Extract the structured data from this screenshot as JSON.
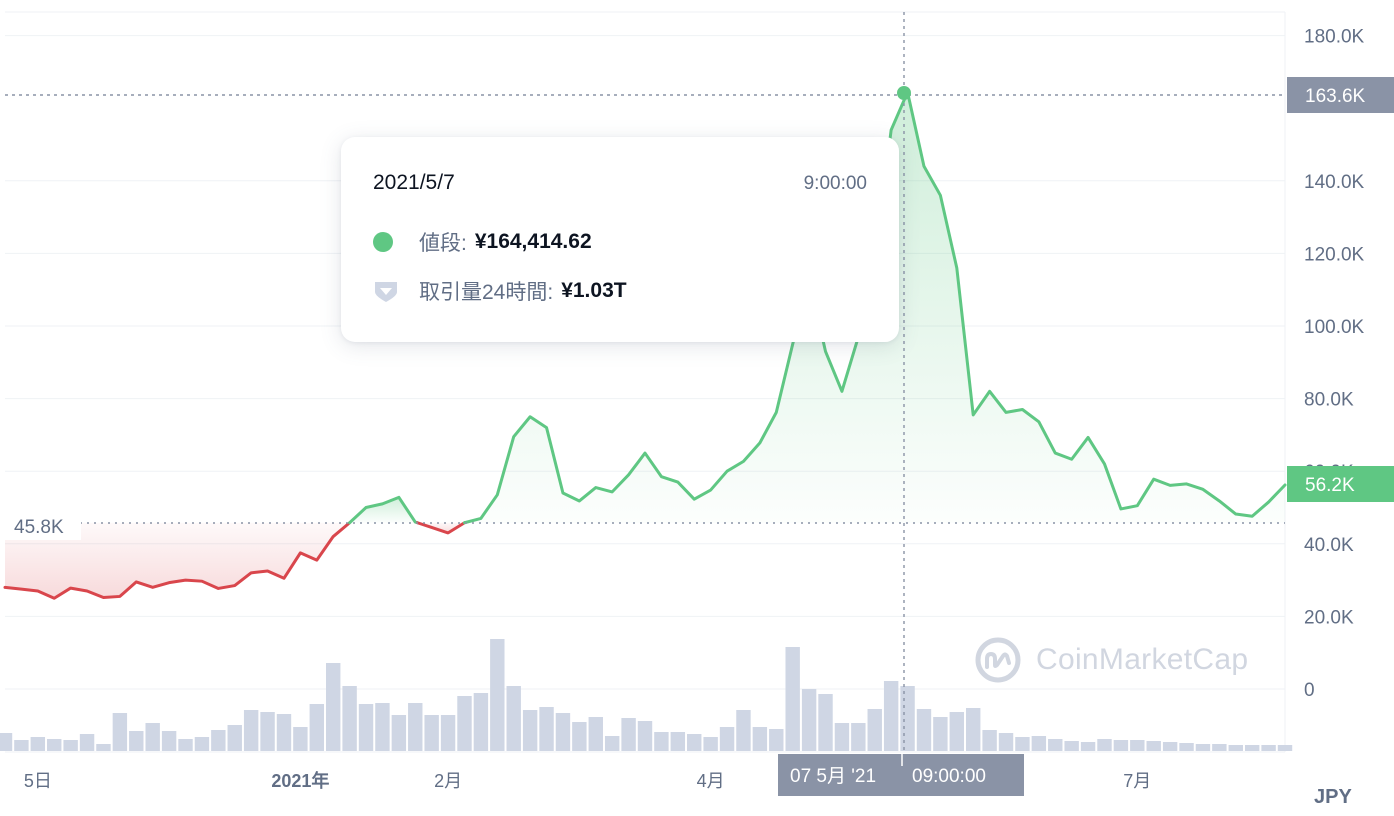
{
  "currency": "JPY",
  "watermark": "CoinMarketCap",
  "colors": {
    "up": "#5fc783",
    "down": "#d9464c",
    "volume": "#cfd6e4",
    "grid": "#eff2f5",
    "axis_text": "#616e85",
    "axis_tag": "#8a93a6"
  },
  "tooltip": {
    "date": "2021/5/7",
    "time": "9:00:00",
    "price_label": "値段:",
    "price_value": "¥164,414.62",
    "volume_label": "取引量24時間:",
    "volume_value": "¥1.03T"
  },
  "crosshair": {
    "x_label": "07 5月 '21",
    "x_time": "09:00:00",
    "y_label": "163.6K"
  },
  "current_price_tag": "56.2K",
  "baseline_label": "45.8K",
  "chart_data": {
    "type": "area",
    "y_axis_ticks": [
      "180.0K",
      "140.0K",
      "120.0K",
      "100.0K",
      "80.0K",
      "60.0K",
      "40.0K",
      "20.0K",
      "0"
    ],
    "y_tick_values": [
      180000,
      140000,
      120000,
      100000,
      80000,
      60000,
      40000,
      20000,
      0
    ],
    "ylim": [
      0,
      180000
    ],
    "baseline": 45800,
    "x_axis_ticks": [
      {
        "label": "5日",
        "index": 2
      },
      {
        "label": "2021年",
        "index": 18,
        "bold": true
      },
      {
        "label": "2月",
        "index": 27
      },
      {
        "label": "4月",
        "index": 43
      },
      {
        "label": "7月",
        "index": 69
      }
    ],
    "x_tick_labels": [
      "5日",
      "2021年",
      "2月",
      "4月",
      "7月"
    ],
    "price": [
      28000,
      27500,
      27000,
      25000,
      27800,
      27000,
      25200,
      25500,
      29500,
      28000,
      29300,
      30000,
      29700,
      27700,
      28500,
      32000,
      32500,
      30500,
      37500,
      35500,
      42000,
      45800,
      50000,
      51000,
      52800,
      46000,
      44500,
      43000,
      45800,
      47000,
      53500,
      69500,
      75000,
      72000,
      54000,
      51800,
      55500,
      54300,
      59000,
      65000,
      58500,
      57000,
      52300,
      54800,
      60000,
      62700,
      67800,
      76200,
      95000,
      113000,
      93000,
      82000,
      97000,
      118000,
      154000,
      164414,
      144000,
      136000,
      116000,
      75500,
      82000,
      76200,
      77000,
      73600,
      65000,
      63300,
      69300,
      62000,
      49600,
      50500,
      57800,
      56100,
      56500,
      55000,
      51800,
      48200,
      47600,
      51500,
      56200
    ],
    "volume": [
      18,
      11,
      14,
      12,
      11,
      17,
      7,
      38,
      20,
      28,
      20,
      12,
      14,
      21,
      26,
      41,
      39,
      37,
      24,
      47,
      88,
      65,
      47,
      48,
      36,
      48,
      36,
      36,
      55,
      58,
      112,
      65,
      41,
      44,
      38,
      29,
      34,
      15,
      33,
      30,
      19,
      19,
      17,
      14,
      24,
      41,
      24,
      22,
      104,
      62,
      57,
      28,
      28,
      42,
      70,
      65,
      42,
      34,
      39,
      43,
      21,
      18,
      14,
      15,
      12,
      10,
      9,
      12,
      11,
      11,
      10,
      9,
      8,
      7,
      7,
      6,
      6,
      6,
      6
    ],
    "highlight_index": 55
  }
}
